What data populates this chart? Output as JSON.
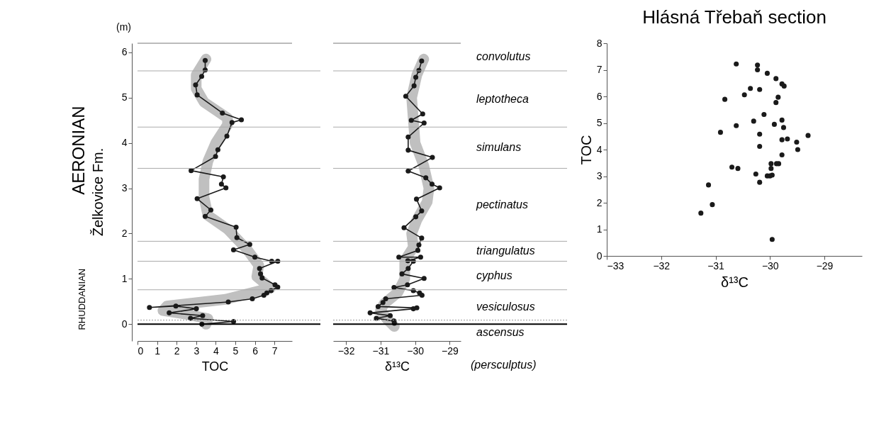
{
  "chart_data": [
    {
      "type": "line",
      "xlabel": "TOC",
      "ylabel": "(m)",
      "xlim": [
        0,
        7.9
      ],
      "ylim": [
        -0.37,
        6.2
      ],
      "xticks": [
        0,
        1,
        2,
        3,
        4,
        5,
        6,
        7
      ],
      "yticks": [
        0,
        1,
        2,
        3,
        4,
        5,
        6
      ],
      "grid": false,
      "annotations": [
        "AERONIAN",
        "Želkovice Fm.",
        "RHUDDANIAN"
      ],
      "ref_lines": [
        {
          "axis": "y",
          "value": 5.59,
          "color": "#aaaaaa"
        },
        {
          "axis": "y",
          "value": 4.35,
          "color": "#aaaaaa"
        },
        {
          "axis": "y",
          "value": 3.44,
          "color": "#aaaaaa"
        },
        {
          "axis": "y",
          "value": 1.83,
          "color": "#aaaaaa"
        },
        {
          "axis": "y",
          "value": 1.39,
          "color": "#aaaaaa"
        },
        {
          "axis": "y",
          "value": 0.76,
          "color": "#aaaaaa"
        },
        {
          "axis": "y",
          "value": 0.09,
          "color": "#999999",
          "line_style": "dotted"
        },
        {
          "axis": "y",
          "value": 0,
          "color": "#000000"
        }
      ],
      "series": [
        {
          "color": "#c0c0c0",
          "marker": "none",
          "x": [
            3.5,
            3.0,
            3.0,
            3.4,
            4.6,
            4.6,
            4.0,
            3.6,
            3.4,
            3.4,
            3.6,
            4.6,
            5.6,
            6.2,
            6.1,
            6.8,
            4.5,
            1.5,
            1.3,
            2.5,
            3.6,
            3.5
          ],
          "values": [
            5.85,
            5.5,
            5.2,
            4.9,
            4.55,
            4.4,
            4.0,
            3.6,
            3.2,
            2.8,
            2.4,
            2.1,
            1.65,
            1.3,
            1.05,
            0.8,
            0.55,
            0.4,
            0.3,
            0.22,
            0.12,
            0.0
          ]
        },
        {
          "color": "#1a1a1a",
          "marker": "circle",
          "line_style": "solid",
          "x": [
            3.46,
            3.46,
            3.28,
            2.97,
            3.05,
            4.34,
            5.31,
            4.83,
            4.57,
            4.11,
            3.99,
            2.74,
            4.39,
            4.29,
            4.52,
            3.05,
            3.75,
            3.46,
            5.04,
            5.08,
            5.74,
            4.91,
            6.0,
            6.86,
            7.17,
            6.24,
            6.29,
            6.37,
            7.03,
            7.17,
            6.83,
            6.61,
            6.46,
            5.87,
            4.64,
            0.61,
            1.96,
            3.01,
            1.62,
            3.33,
            2.71,
            4.91,
            3.29
          ],
          "values": [
            5.82,
            5.61,
            5.47,
            5.28,
            5.06,
            4.66,
            4.51,
            4.45,
            4.15,
            3.85,
            3.7,
            3.39,
            3.25,
            3.09,
            3.01,
            2.77,
            2.52,
            2.38,
            2.14,
            1.91,
            1.76,
            1.64,
            1.48,
            1.39,
            1.39,
            1.23,
            1.11,
            1.02,
            0.87,
            0.82,
            0.74,
            0.69,
            0.64,
            0.56,
            0.49,
            0.37,
            0.4,
            0.34,
            0.25,
            0.19,
            0.13,
            0.06,
            0.0
          ]
        }
      ]
    },
    {
      "type": "line",
      "xlabel": "δ¹³C",
      "xlim": [
        -32.37,
        -28.68
      ],
      "ylim": [
        -0.37,
        6.2
      ],
      "xticks": [
        -32,
        -31,
        -30,
        -29
      ],
      "tick_labels": "x",
      "grid": false,
      "annotations": [
        "convolutus",
        "leptotheca",
        "simulans",
        "pectinatus",
        "triangulatus",
        "cyphus",
        "vesiculosus",
        "ascensus",
        "(persculptus)"
      ],
      "ref_lines": [
        {
          "axis": "y",
          "value": 5.59,
          "color": "#aaaaaa"
        },
        {
          "axis": "y",
          "value": 4.35,
          "color": "#aaaaaa"
        },
        {
          "axis": "y",
          "value": 3.44,
          "color": "#aaaaaa"
        },
        {
          "axis": "y",
          "value": 1.83,
          "color": "#aaaaaa"
        },
        {
          "axis": "y",
          "value": 1.39,
          "color": "#aaaaaa"
        },
        {
          "axis": "y",
          "value": 0.76,
          "color": "#aaaaaa"
        },
        {
          "axis": "y",
          "value": 0.09,
          "color": "#999999",
          "line_style": "dotted"
        },
        {
          "axis": "y",
          "value": 0,
          "color": "#000000"
        }
      ],
      "series": [
        {
          "color": "#c0c0c0",
          "marker": "none",
          "x": [
            -29.75,
            -29.95,
            -30.1,
            -30.05,
            -30.0,
            -29.75,
            -29.6,
            -29.65,
            -29.95,
            -30.1,
            -30.05,
            -30.3,
            -30.3,
            -30.5,
            -30.9,
            -31.0,
            -30.8,
            -30.6
          ],
          "values": [
            5.85,
            5.5,
            5.0,
            4.5,
            4.0,
            3.5,
            3.0,
            2.7,
            2.3,
            2.0,
            1.7,
            1.4,
            1.0,
            0.7,
            0.45,
            0.3,
            0.1,
            -0.05
          ]
        },
        {
          "color": "#1a1a1a",
          "marker": "circle",
          "line_style": "solid",
          "x": [
            -29.81,
            -29.89,
            -29.98,
            -30.03,
            -30.27,
            -29.78,
            -30.11,
            -29.74,
            -30.2,
            -30.2,
            -29.5,
            -30.2,
            -29.69,
            -29.51,
            -29.29,
            -29.96,
            -29.81,
            -29.98,
            -30.32,
            -29.81,
            -29.89,
            -29.92,
            -30.47,
            -29.84,
            -30.21,
            -30.05,
            -30.2,
            -30.38,
            -29.74,
            -30.22,
            -30.61,
            -30.05,
            -29.87,
            -29.8,
            -30.85,
            -30.93,
            -31.07,
            -29.95,
            -30.05,
            -31.3,
            -30.72,
            -31.12,
            -30.61,
            -30.6
          ],
          "values": [
            5.81,
            5.6,
            5.45,
            5.26,
            5.03,
            4.64,
            4.5,
            4.44,
            4.13,
            3.84,
            3.68,
            3.38,
            3.23,
            3.09,
            3.01,
            2.76,
            2.5,
            2.37,
            2.13,
            1.9,
            1.75,
            1.63,
            1.48,
            1.48,
            1.4,
            1.39,
            1.23,
            1.11,
            1.01,
            0.87,
            0.81,
            0.74,
            0.69,
            0.64,
            0.56,
            0.48,
            0.39,
            0.36,
            0.34,
            0.25,
            0.19,
            0.13,
            0.07,
            0.02
          ]
        }
      ]
    },
    {
      "type": "scatter",
      "title": "Hlásná Třebaň section",
      "xlabel": "δ¹³C",
      "ylabel": "TOC",
      "xlim": [
        -33,
        -28.31
      ],
      "ylim": [
        0,
        8
      ],
      "xticks": [
        -33,
        -32,
        -31,
        -30,
        -29
      ],
      "yticks": [
        0,
        1,
        2,
        3,
        4,
        5,
        6,
        7,
        8
      ],
      "grid": false,
      "marker": "circle",
      "color": "#1a1a1a",
      "x": [
        -30.62,
        -30.23,
        -30.23,
        -30.05,
        -29.89,
        -29.78,
        -29.74,
        -30.36,
        -30.19,
        -30.47,
        -29.85,
        -30.83,
        -29.89,
        -30.11,
        -30.3,
        -29.78,
        -29.92,
        -30.62,
        -29.75,
        -30.91,
        -30.19,
        -29.3,
        -29.78,
        -29.68,
        -29.51,
        -30.19,
        -29.49,
        -29.78,
        -29.98,
        -29.88,
        -29.84,
        -30.7,
        -30.59,
        -29.98,
        -30.26,
        -30.05,
        -30.0,
        -29.96,
        -30.19,
        -31.13,
        -31.06,
        -31.27,
        -29.96
      ],
      "values": [
        7.22,
        7.18,
        7.0,
        6.87,
        6.67,
        6.47,
        6.39,
        6.3,
        6.26,
        6.06,
        5.97,
        5.89,
        5.77,
        5.32,
        5.07,
        5.11,
        4.95,
        4.9,
        4.83,
        4.65,
        4.58,
        4.53,
        4.37,
        4.4,
        4.28,
        4.12,
        4.0,
        3.8,
        3.47,
        3.47,
        3.47,
        3.34,
        3.29,
        3.29,
        3.08,
        3.01,
        3.01,
        3.04,
        2.77,
        2.67,
        1.93,
        1.61,
        0.62
      ]
    }
  ]
}
